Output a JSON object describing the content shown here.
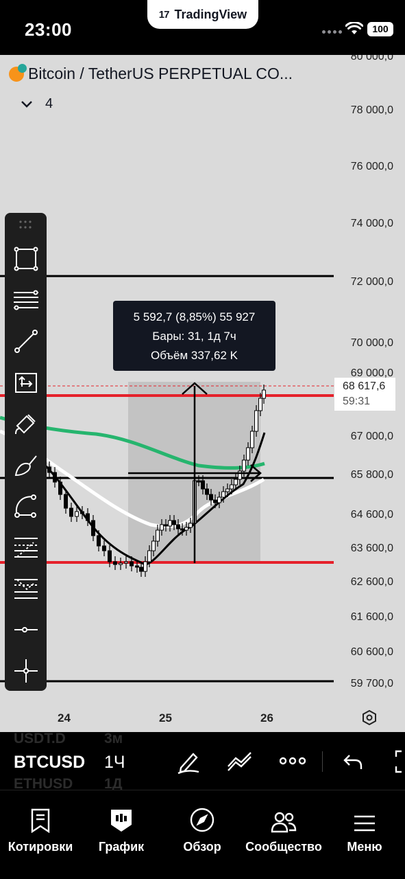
{
  "status_bar": {
    "time": "23:00",
    "brand": "TradingView",
    "battery": "100"
  },
  "chart": {
    "symbol_title": "Bitcoin / TetherUS PERPETUAL CO...",
    "indicator_count": "4",
    "price_axis": [
      "80 000,0",
      "78 000,0",
      "76 000,0",
      "74 000,0",
      "72 000,0",
      "70 000,0",
      "69 000,0",
      "67 000,0",
      "65 800,0",
      "64 600,0",
      "63 600,0",
      "62 600,0",
      "61 600,0",
      "60 600,0",
      "59 700,0"
    ],
    "time_axis": [
      "24",
      "25",
      "26"
    ],
    "current_price": "68 617,6",
    "countdown": "59:31",
    "measure": {
      "line1": "5 592,7 (8,85%) 55 927",
      "line2": "Бары: 31, 1д 7ч",
      "line3": "Объём 337,62 K"
    },
    "colors": {
      "background": "#dadada",
      "level_red": "#e5212b",
      "ma_green": "#26b56e",
      "candle": "#000000",
      "band": "#ffffff"
    }
  },
  "toolbar_icons": [
    "rectangle-icon",
    "parallel-channel-icon",
    "trend-line-icon",
    "measure-icon",
    "brush-icon",
    "highlighter-icon",
    "arc-icon",
    "fib-retracement-icon",
    "fib-extension-icon",
    "horizontal-ray-icon",
    "crosshair-icon"
  ],
  "symbol_bar": {
    "symbol": "BTCUSD",
    "interval": "1Ч",
    "ghost_above_symbol": "USDT.D",
    "ghost_above_interval": "3м",
    "ghost_below_symbol": "ETHUSD",
    "ghost_below_interval": "1Д"
  },
  "nav": [
    {
      "label": "Котировки",
      "icon": "quotes-icon"
    },
    {
      "label": "График",
      "icon": "chart-icon"
    },
    {
      "label": "Обзор",
      "icon": "compass-icon"
    },
    {
      "label": "Сообщество",
      "icon": "community-icon"
    },
    {
      "label": "Меню",
      "icon": "menu-icon"
    }
  ]
}
